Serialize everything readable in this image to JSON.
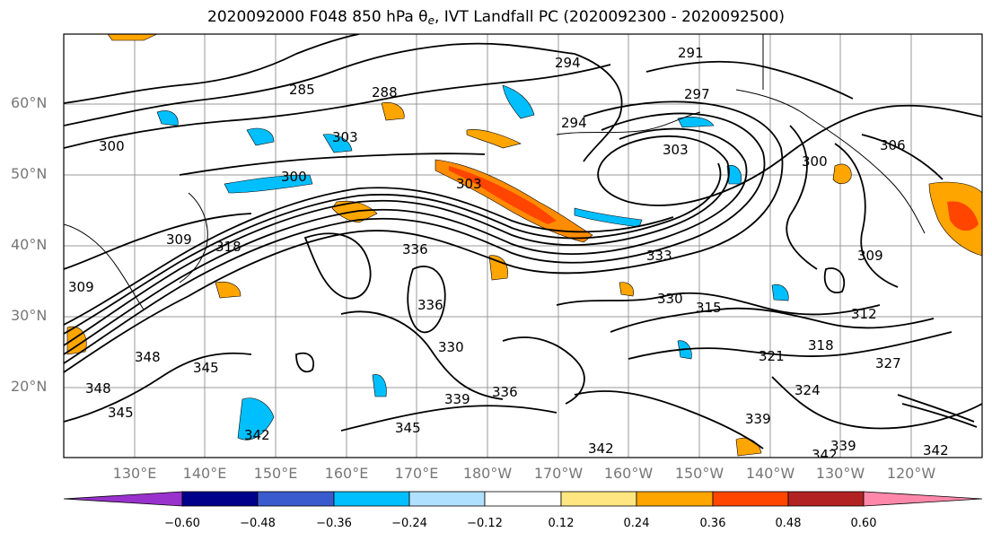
{
  "title": {
    "prefix": "2020092000 F048 850 hPa θ",
    "subscript": "e",
    "suffix": ", IVT Landfall PC (2020092300 - 2020092500)"
  },
  "map": {
    "lat_ticks": [
      "20°N",
      "30°N",
      "40°N",
      "50°N",
      "60°N"
    ],
    "lon_ticks": [
      "130°E",
      "140°E",
      "150°E",
      "160°E",
      "170°E",
      "180°W",
      "170°W",
      "160°W",
      "150°W",
      "140°W",
      "130°W",
      "120°W"
    ],
    "contour_labels": [
      "285",
      "288",
      "291",
      "294",
      "294",
      "297",
      "300",
      "300",
      "300",
      "303",
      "303",
      "303",
      "306",
      "309",
      "309",
      "309",
      "312",
      "315",
      "318",
      "318",
      "321",
      "324",
      "327",
      "330",
      "330",
      "333",
      "336",
      "336",
      "336",
      "339",
      "339",
      "339",
      "342",
      "342",
      "342",
      "342",
      "345",
      "345",
      "345",
      "348",
      "348"
    ]
  },
  "colorbar": {
    "ticks": [
      "−0.60",
      "−0.48",
      "−0.36",
      "−0.24",
      "−0.12",
      "0.12",
      "0.24",
      "0.36",
      "0.48",
      "0.60"
    ],
    "colors": [
      "#9932cc",
      "#00008b",
      "#3a5bcd",
      "#00bfff",
      "#b0e0ff",
      "#ffffff",
      "#ffe680",
      "#ffa500",
      "#ff4500",
      "#b22222",
      "#ff88aa"
    ]
  }
}
